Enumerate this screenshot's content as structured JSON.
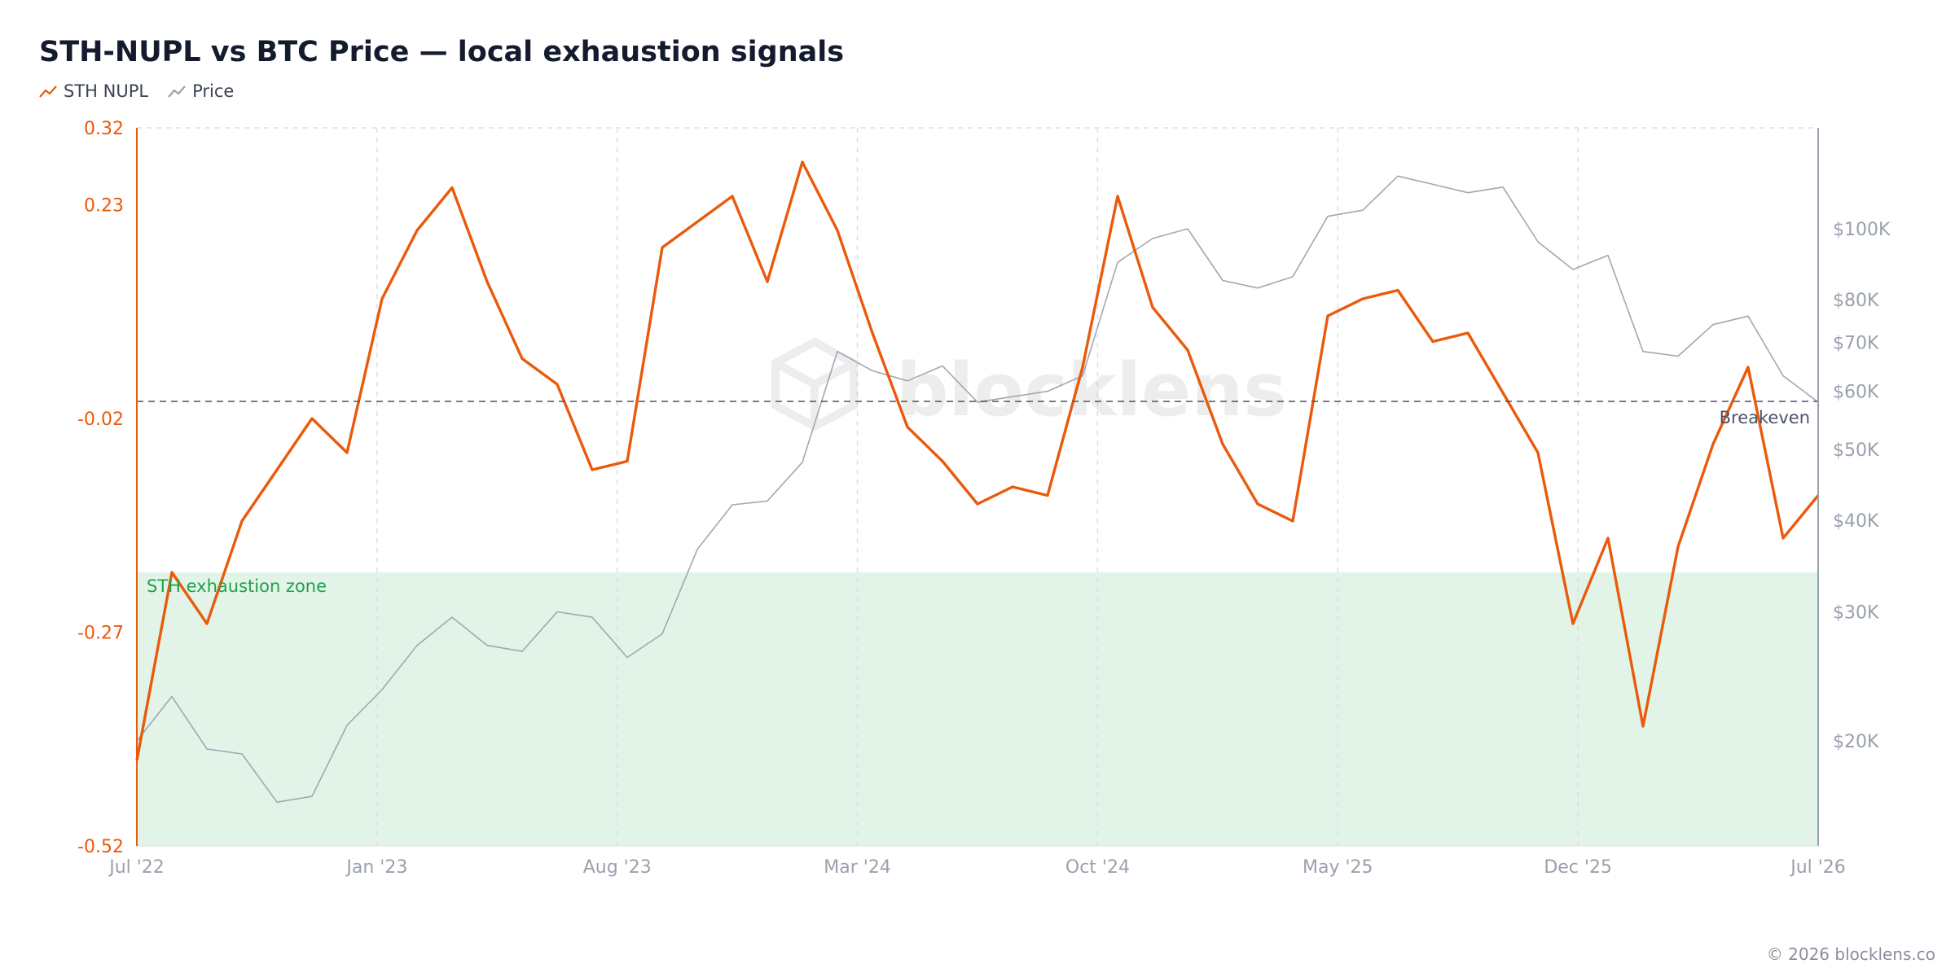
{
  "chart_data": {
    "type": "line",
    "title": "STH-NUPL vs BTC Price — local exhaustion signals",
    "legend": [
      {
        "name": "STH NUPL",
        "color": "#ea5a0c",
        "icon": "trend-line-icon"
      },
      {
        "name": "Price",
        "color": "#9aa0ad",
        "icon": "trend-line-icon"
      }
    ],
    "x_ticks": [
      "Jul '22",
      "Jan '23",
      "Aug '23",
      "Mar '24",
      "Oct '24",
      "May '25",
      "Dec '25",
      "Jul '26"
    ],
    "y_left_ticks": [
      "0.32",
      "0.23",
      "-0.02",
      "-0.27",
      "-0.52"
    ],
    "y_left_range": [
      -0.52,
      0.32
    ],
    "y_right_ticks": [
      "$100K",
      "$80K",
      "$70K",
      "$60K",
      "$50K",
      "$40K",
      "$30K",
      "$20K"
    ],
    "y_right_scale": "log",
    "x_range": [
      "2022-07",
      "2026-07"
    ],
    "grid": "vertical dashed",
    "legend_position": "top-left",
    "annotations": {
      "breakeven_label": "Breakeven",
      "breakeven_value": 0,
      "zone_label": "STH exhaustion zone",
      "zone_range": [
        -0.52,
        -0.2
      ]
    },
    "series": [
      {
        "name": "STH NUPL",
        "x": [
          "2022-07",
          "2022-08",
          "2022-09",
          "2022-10",
          "2022-11",
          "2022-12",
          "2023-01",
          "2023-02",
          "2023-03",
          "2023-04",
          "2023-05",
          "2023-06",
          "2023-07",
          "2023-08",
          "2023-09",
          "2023-10",
          "2023-11",
          "2023-12",
          "2024-01",
          "2024-02",
          "2024-03",
          "2024-04",
          "2024-05",
          "2024-06",
          "2024-07",
          "2024-08",
          "2024-09",
          "2024-10",
          "2024-11",
          "2024-12",
          "2025-01",
          "2025-02",
          "2025-03",
          "2025-04",
          "2025-05",
          "2025-06",
          "2025-07",
          "2025-08",
          "2025-09",
          "2025-10",
          "2025-11",
          "2025-12",
          "2026-01",
          "2026-02",
          "2026-03",
          "2026-04",
          "2026-05",
          "2026-06",
          "2026-07"
        ],
        "values": [
          -0.42,
          -0.2,
          -0.26,
          -0.14,
          -0.08,
          -0.02,
          -0.06,
          0.12,
          0.2,
          0.25,
          0.14,
          0.05,
          0.02,
          -0.08,
          -0.07,
          0.18,
          0.21,
          0.24,
          0.14,
          0.28,
          0.2,
          0.08,
          -0.03,
          -0.07,
          -0.12,
          -0.1,
          -0.11,
          0.04,
          0.24,
          0.11,
          0.06,
          -0.05,
          -0.12,
          -0.14,
          0.1,
          0.12,
          0.13,
          0.07,
          0.08,
          0.01,
          -0.06,
          -0.26,
          -0.16,
          -0.38,
          -0.17,
          -0.05,
          0.04,
          -0.16,
          -0.11
        ]
      },
      {
        "name": "Price",
        "x": [
          "2022-07",
          "2022-08",
          "2022-09",
          "2022-10",
          "2022-11",
          "2022-12",
          "2023-01",
          "2023-02",
          "2023-03",
          "2023-04",
          "2023-05",
          "2023-06",
          "2023-07",
          "2023-08",
          "2023-09",
          "2023-10",
          "2023-11",
          "2023-12",
          "2024-01",
          "2024-02",
          "2024-03",
          "2024-04",
          "2024-05",
          "2024-06",
          "2024-07",
          "2024-08",
          "2024-09",
          "2024-10",
          "2024-11",
          "2024-12",
          "2025-01",
          "2025-02",
          "2025-03",
          "2025-04",
          "2025-05",
          "2025-06",
          "2025-07",
          "2025-08",
          "2025-09",
          "2025-10",
          "2025-11",
          "2025-12",
          "2026-01",
          "2026-02",
          "2026-03",
          "2026-04",
          "2026-05",
          "2026-06",
          "2026-07"
        ],
        "values": [
          20000,
          23000,
          19500,
          19200,
          16500,
          16800,
          21000,
          23500,
          27000,
          29500,
          27000,
          26500,
          30000,
          29500,
          26000,
          28000,
          36500,
          42000,
          42500,
          48000,
          68000,
          64000,
          62000,
          65000,
          58000,
          59000,
          60000,
          63000,
          90000,
          97000,
          100000,
          85000,
          83000,
          86000,
          104000,
          106000,
          118000,
          115000,
          112000,
          114000,
          96000,
          88000,
          92000,
          68000,
          67000,
          74000,
          76000,
          63000,
          58000
        ]
      }
    ]
  },
  "watermark": {
    "text": "blocklens",
    "icon": "cube-logo-icon"
  },
  "footer": {
    "copyright": "© 2026 blocklens.co"
  }
}
